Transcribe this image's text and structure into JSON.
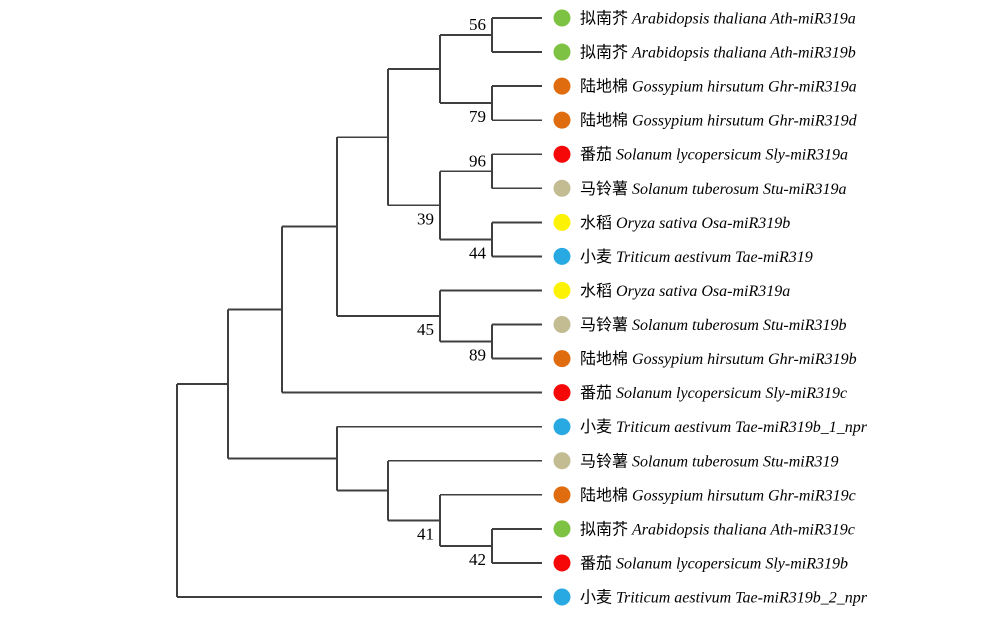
{
  "figure": {
    "type": "phylogenetic-tree-cladogram",
    "background": "#ffffff",
    "line_color": "#3f3f3f",
    "dot_radius": 8.5
  },
  "species_colors": [
    {
      "cn": "拟南芥",
      "species": "Arabidopsis thaliana",
      "color": "#7DC242"
    },
    {
      "cn": "陆地棉",
      "species": "Gossypium hirsutum",
      "color": "#E06C10"
    },
    {
      "cn": "番茄",
      "species": "Solanum lycopersicum",
      "color": "#F70808"
    },
    {
      "cn": "马铃薯",
      "species": "Solanum tuberosum",
      "color": "#C3BB92"
    },
    {
      "cn": "水稻",
      "species": "Oryza sativa",
      "color": "#FCF203"
    },
    {
      "cn": "小麦",
      "species": "Triticum aestivum",
      "color": "#29A9E1"
    }
  ],
  "tree_leaves": [
    {
      "cn": "拟南芥",
      "latin": "Arabidopsis thaliana Ath-miR319a",
      "color": "#7DC242"
    },
    {
      "cn": "拟南芥",
      "latin": "Arabidopsis thaliana Ath-miR319b",
      "color": "#7DC242"
    },
    {
      "cn": "陆地棉",
      "latin": "Gossypium hirsutum Ghr-miR319a",
      "color": "#E06C10"
    },
    {
      "cn": "陆地棉",
      "latin": "Gossypium hirsutum Ghr-miR319d",
      "color": "#E06C10"
    },
    {
      "cn": "番茄",
      "latin": "Solanum lycopersicum Sly-miR319a",
      "color": "#F70808"
    },
    {
      "cn": "马铃薯",
      "latin": "Solanum tuberosum Stu-miR319a",
      "color": "#C3BB92"
    },
    {
      "cn": "水稻",
      "latin": "Oryza sativa Osa-miR319b",
      "color": "#FCF203"
    },
    {
      "cn": "小麦",
      "latin": "Triticum aestivum Tae-miR319",
      "color": "#29A9E1"
    },
    {
      "cn": "水稻",
      "latin": "Oryza sativa Osa-miR319a",
      "color": "#FCF203"
    },
    {
      "cn": "马铃薯",
      "latin": "Solanum tuberosum Stu-miR319b",
      "color": "#C3BB92"
    },
    {
      "cn": "陆地棉",
      "latin": "Gossypium hirsutum Ghr-miR319b",
      "color": "#E06C10"
    },
    {
      "cn": "番茄",
      "latin": "Solanum lycopersicum Sly-miR319c",
      "color": "#F70808"
    },
    {
      "cn": "小麦",
      "latin": "Triticum aestivum Tae-miR319b_1_npr",
      "color": "#29A9E1"
    },
    {
      "cn": "马铃薯",
      "latin": "Solanum tuberosum Stu-miR319",
      "color": "#C3BB92"
    },
    {
      "cn": "陆地棉",
      "latin": "Gossypium hirsutum Ghr-miR319c",
      "color": "#E06C10"
    },
    {
      "cn": "拟南芥",
      "latin": "Arabidopsis thaliana Ath-miR319c",
      "color": "#7DC242"
    },
    {
      "cn": "番茄",
      "latin": "Solanum lycopersicum Sly-miR319b",
      "color": "#F70808"
    },
    {
      "cn": "小麦",
      "latin": "Triticum aestivum Tae-miR319b_2_npr",
      "color": "#29A9E1"
    }
  ],
  "bootstrap_values": [
    "56",
    "79",
    "96",
    "44",
    "39",
    "45",
    "89",
    "41",
    "42"
  ],
  "tree": {
    "children": [
      {
        "children": [
          {
            "children": [
              {
                "children": [
                  {
                    "children": [
                      {
                        "children": [
                          {
                            "bootstrap": "56",
                            "label_side": "above",
                            "children": [
                              {
                                "leaf": 0
                              },
                              {
                                "leaf": 1
                              }
                            ]
                          },
                          {
                            "bootstrap": "79",
                            "label_side": "below",
                            "children": [
                              {
                                "leaf": 2
                              },
                              {
                                "leaf": 3
                              }
                            ]
                          }
                        ]
                      },
                      {
                        "bootstrap": "39",
                        "label_side": "below",
                        "children": [
                          {
                            "bootstrap": "96",
                            "label_side": "above",
                            "children": [
                              {
                                "leaf": 4
                              },
                              {
                                "leaf": 5
                              }
                            ]
                          },
                          {
                            "bootstrap": "44",
                            "label_side": "below",
                            "children": [
                              {
                                "leaf": 6
                              },
                              {
                                "leaf": 7
                              }
                            ]
                          }
                        ]
                      }
                    ]
                  },
                  {
                    "bootstrap": "45",
                    "label_side": "below",
                    "children": [
                      {
                        "leaf": 8
                      },
                      {
                        "bootstrap": "89",
                        "label_side": "below",
                        "children": [
                          {
                            "leaf": 9
                          },
                          {
                            "leaf": 10
                          }
                        ]
                      }
                    ]
                  }
                ]
              },
              {
                "leaf": 11
              }
            ]
          },
          {
            "children": [
              {
                "leaf": 12
              },
              {
                "children": [
                  {
                    "leaf": 13
                  },
                  {
                    "bootstrap": "41",
                    "label_side": "below",
                    "children": [
                      {
                        "leaf": 14
                      },
                      {
                        "bootstrap": "42",
                        "label_side": "below",
                        "children": [
                          {
                            "leaf": 15
                          },
                          {
                            "leaf": 16
                          }
                        ]
                      }
                    ]
                  }
                ]
              }
            ]
          }
        ]
      },
      {
        "leaf": 17
      }
    ]
  }
}
